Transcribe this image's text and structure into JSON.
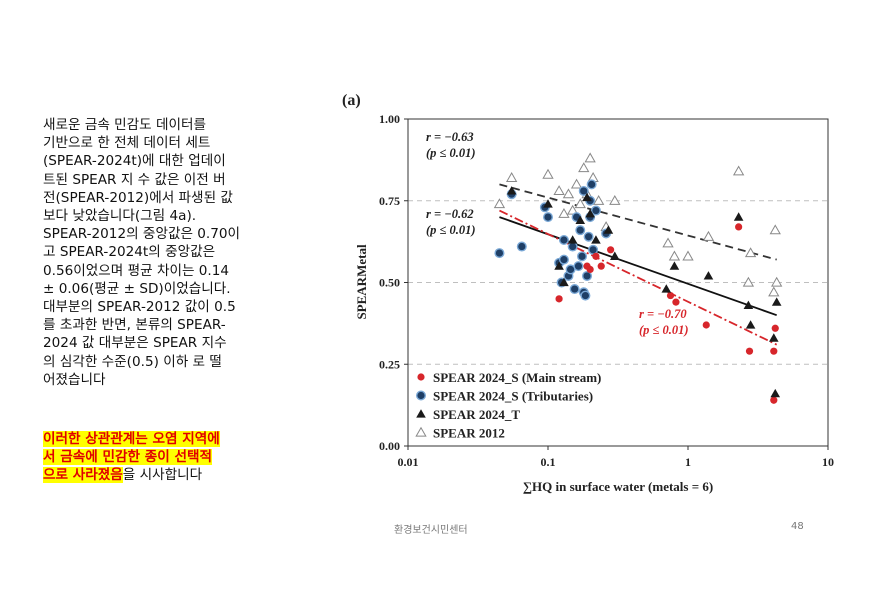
{
  "slide": {
    "body_text": "새로운 금속 민감도 데이터를\n기반으로 한 전체 데이터 세트\n(SPEAR-2024t)에 대한 업데이\n트된 SPEAR 지 수 값은 이전 버\n전(SPEAR-2012)에서 파생된 값\n보다 낮았습니다(그림 4a).\nSPEAR-2012의 중앙값은 0.70이\n고 SPEAR-2024t의 중앙값은\n0.56이었으며 평균 차이는 0.14\n± 0.06(평균 ± SD)이었습니다.\n대부분의 SPEAR-2012 값이 0.5\n를 초과한 반면, 본류의 SPEAR-\n2024 값 대부분은 SPEAR 지수\n의 심각한 수준(0.5) 이하 로 떨\n어졌습니다",
    "highlight_text": "이러한 상관관계는 오염 지역에\n서 금속에 민감한 종이 선택적\n으로 사라졌음",
    "highlight_tail": "을 시사합니다",
    "footer_center": "환경보건시민센터",
    "page_number": "48"
  },
  "chart_data": {
    "type": "scatter",
    "panel_label": "(a)",
    "xlabel": "∑HQ in surface water (metals = 6)",
    "ylabel": "SPEARMetal",
    "x_scale": "log",
    "xlim": [
      0.01,
      10
    ],
    "ylim": [
      0,
      1
    ],
    "x_ticks": [
      "0.01",
      "0.1",
      "1",
      "10"
    ],
    "y_ticks": [
      "0.00",
      "0.25",
      "0.50",
      "0.75",
      "1.00"
    ],
    "grid": "horizontal dashed",
    "legend_position": "bottom-left",
    "colors": {
      "main_stream": "#d7262b",
      "tributaries": "#1f3f66",
      "tributaries_edge": "#7aa8d6",
      "spear2024_t": "#1a1a1a",
      "spear2012": "#888888"
    },
    "series": [
      {
        "name": "SPEAR 2024_S (Main stream)",
        "marker": "circle-red",
        "points": [
          [
            0.12,
            0.45
          ],
          [
            0.19,
            0.55
          ],
          [
            0.2,
            0.54
          ],
          [
            0.22,
            0.58
          ],
          [
            0.24,
            0.55
          ],
          [
            0.28,
            0.6
          ],
          [
            0.75,
            0.46
          ],
          [
            0.82,
            0.44
          ],
          [
            1.35,
            0.37
          ],
          [
            2.3,
            0.67
          ],
          [
            2.75,
            0.29
          ],
          [
            4.2,
            0.36
          ],
          [
            4.1,
            0.29
          ],
          [
            4.1,
            0.14
          ]
        ]
      },
      {
        "name": "SPEAR 2024_S (Tributaries)",
        "marker": "circle-blue",
        "points": [
          [
            0.045,
            0.59
          ],
          [
            0.055,
            0.77
          ],
          [
            0.065,
            0.61
          ],
          [
            0.095,
            0.73
          ],
          [
            0.1,
            0.7
          ],
          [
            0.12,
            0.56
          ],
          [
            0.125,
            0.5
          ],
          [
            0.13,
            0.57
          ],
          [
            0.13,
            0.63
          ],
          [
            0.14,
            0.52
          ],
          [
            0.145,
            0.54
          ],
          [
            0.15,
            0.61
          ],
          [
            0.155,
            0.48
          ],
          [
            0.16,
            0.7
          ],
          [
            0.165,
            0.55
          ],
          [
            0.17,
            0.66
          ],
          [
            0.175,
            0.58
          ],
          [
            0.18,
            0.47
          ],
          [
            0.18,
            0.78
          ],
          [
            0.185,
            0.46
          ],
          [
            0.19,
            0.52
          ],
          [
            0.195,
            0.64
          ],
          [
            0.2,
            0.75
          ],
          [
            0.2,
            0.7
          ],
          [
            0.205,
            0.8
          ],
          [
            0.21,
            0.6
          ],
          [
            0.22,
            0.72
          ],
          [
            0.26,
            0.65
          ]
        ]
      },
      {
        "name": "SPEAR 2024_T",
        "marker": "triangle-black",
        "points": [
          [
            0.055,
            0.78
          ],
          [
            0.1,
            0.74
          ],
          [
            0.12,
            0.55
          ],
          [
            0.13,
            0.5
          ],
          [
            0.15,
            0.63
          ],
          [
            0.17,
            0.69
          ],
          [
            0.19,
            0.76
          ],
          [
            0.2,
            0.71
          ],
          [
            0.22,
            0.63
          ],
          [
            0.27,
            0.66
          ],
          [
            0.3,
            0.58
          ],
          [
            0.7,
            0.48
          ],
          [
            0.8,
            0.55
          ],
          [
            1.4,
            0.52
          ],
          [
            2.3,
            0.7
          ],
          [
            2.7,
            0.43
          ],
          [
            2.8,
            0.37
          ],
          [
            4.1,
            0.33
          ],
          [
            4.3,
            0.44
          ],
          [
            4.2,
            0.16
          ]
        ]
      },
      {
        "name": "SPEAR 2012",
        "marker": "triangle-open",
        "points": [
          [
            0.045,
            0.74
          ],
          [
            0.055,
            0.82
          ],
          [
            0.1,
            0.83
          ],
          [
            0.12,
            0.78
          ],
          [
            0.13,
            0.71
          ],
          [
            0.14,
            0.77
          ],
          [
            0.15,
            0.72
          ],
          [
            0.16,
            0.8
          ],
          [
            0.17,
            0.74
          ],
          [
            0.18,
            0.85
          ],
          [
            0.19,
            0.77
          ],
          [
            0.2,
            0.88
          ],
          [
            0.21,
            0.82
          ],
          [
            0.23,
            0.75
          ],
          [
            0.26,
            0.67
          ],
          [
            0.3,
            0.75
          ],
          [
            0.72,
            0.62
          ],
          [
            0.8,
            0.58
          ],
          [
            1.0,
            0.58
          ],
          [
            1.4,
            0.64
          ],
          [
            2.3,
            0.84
          ],
          [
            2.7,
            0.5
          ],
          [
            2.8,
            0.59
          ],
          [
            4.1,
            0.47
          ],
          [
            4.2,
            0.66
          ],
          [
            4.3,
            0.5
          ]
        ]
      }
    ],
    "fits": [
      {
        "label": "SPEAR 2012",
        "style": "dashed",
        "color": "#333333",
        "x": [
          0.045,
          4.3
        ],
        "y": [
          0.8,
          0.57
        ]
      },
      {
        "label": "SPEAR 2024_T",
        "style": "solid",
        "color": "#111111",
        "x": [
          0.045,
          4.3
        ],
        "y": [
          0.7,
          0.4
        ]
      },
      {
        "label": "SPEAR 2024_S (Main stream)",
        "style": "dashdot",
        "color": "#d7262b",
        "x": [
          0.045,
          4.3
        ],
        "y": [
          0.72,
          0.31
        ]
      }
    ],
    "annotations": [
      {
        "line1": "r = −0.63",
        "line2": "(p ≤ 0.01)",
        "color": "#222222"
      },
      {
        "line1": "r = −0.62",
        "line2": "(p ≤ 0.01)",
        "color": "#222222"
      },
      {
        "line1": "r = −0.70",
        "line2": "(p ≤ 0.01)",
        "color": "#d7262b"
      }
    ]
  }
}
